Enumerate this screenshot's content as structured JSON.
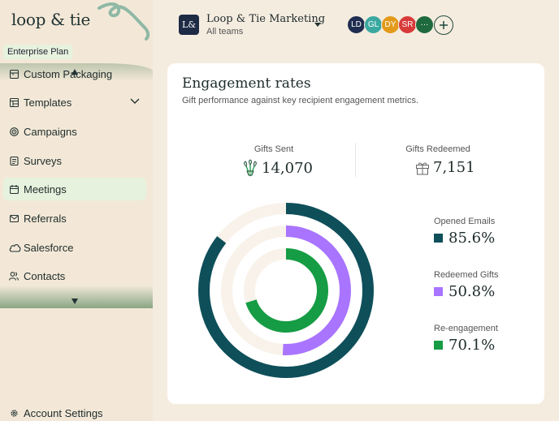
{
  "sidebar": {
    "logo": "loop & tie",
    "plan": "Enterprise Plan",
    "items": [
      {
        "label": "Custom Packaging",
        "icon": "package-icon"
      },
      {
        "label": "Templates",
        "icon": "templates-icon"
      },
      {
        "label": "Campaigns",
        "icon": "target-icon"
      },
      {
        "label": "Surveys",
        "icon": "survey-icon"
      },
      {
        "label": "Meetings",
        "icon": "calendar-icon"
      },
      {
        "label": "Referrals",
        "icon": "envelope-icon"
      },
      {
        "label": "Salesforce",
        "icon": "cloud-icon"
      },
      {
        "label": "Contacts",
        "icon": "contacts-icon"
      }
    ],
    "active": "Meetings",
    "account": "Account Settings"
  },
  "header": {
    "org_badge": "L&",
    "org_name": "Loop & Tie Marketing",
    "org_sub": "All teams",
    "avatars": [
      {
        "initials": "LD",
        "color": "#1f2d50"
      },
      {
        "initials": "GL",
        "color": "#3aa8a0"
      },
      {
        "initials": "DY",
        "color": "#e39a1b"
      },
      {
        "initials": "SR",
        "color": "#d83a3a"
      },
      {
        "initials": "···",
        "color": "#1e6a3e"
      }
    ]
  },
  "card": {
    "title": "Engagement rates",
    "subtitle": "Gift performance against key recipient engagement metrics.",
    "gifts_sent_label": "Gifts Sent",
    "gifts_sent_value": "14,070",
    "gifts_redeemed_label": "Gifts Redeemed",
    "gifts_redeemed_value": "7,151"
  },
  "chart_data": {
    "type": "pie",
    "style": "concentric-radial-rings",
    "series": [
      {
        "name": "Opened Emails",
        "value": 85.6,
        "label": "85.6%",
        "color": "#0e4f5a"
      },
      {
        "name": "Redeemed Gifts",
        "value": 50.8,
        "label": "50.8%",
        "color": "#a974ff"
      },
      {
        "name": "Re-engagement",
        "value": 70.1,
        "label": "70.1%",
        "color": "#159c44"
      }
    ],
    "track_color": "#f8f2ea",
    "legend_placement": "right"
  }
}
